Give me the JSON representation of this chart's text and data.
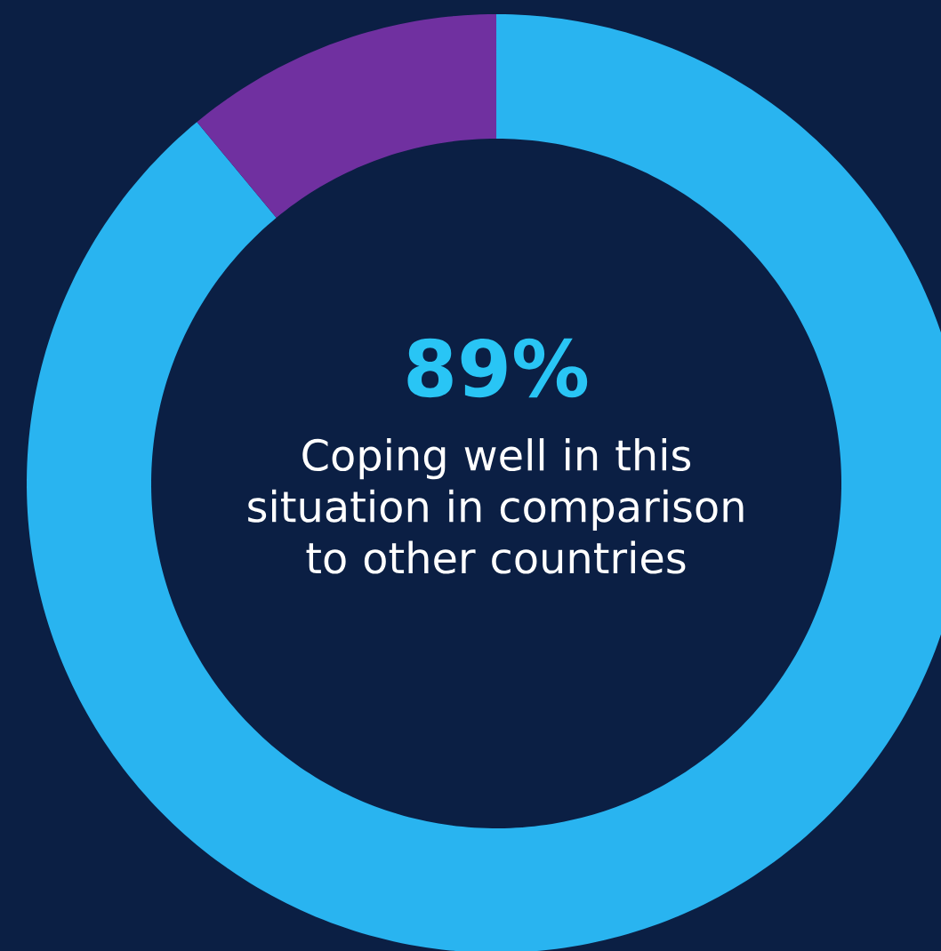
{
  "chart_data": {
    "type": "donut",
    "title": "Coping well in this situation in comparison to other countries",
    "categories": [
      null,
      null
    ],
    "values": [
      89,
      11
    ],
    "colors": [
      "#29b4f0",
      "#7030a0"
    ],
    "value_labels": [
      "89%",
      null
    ]
  }
}
